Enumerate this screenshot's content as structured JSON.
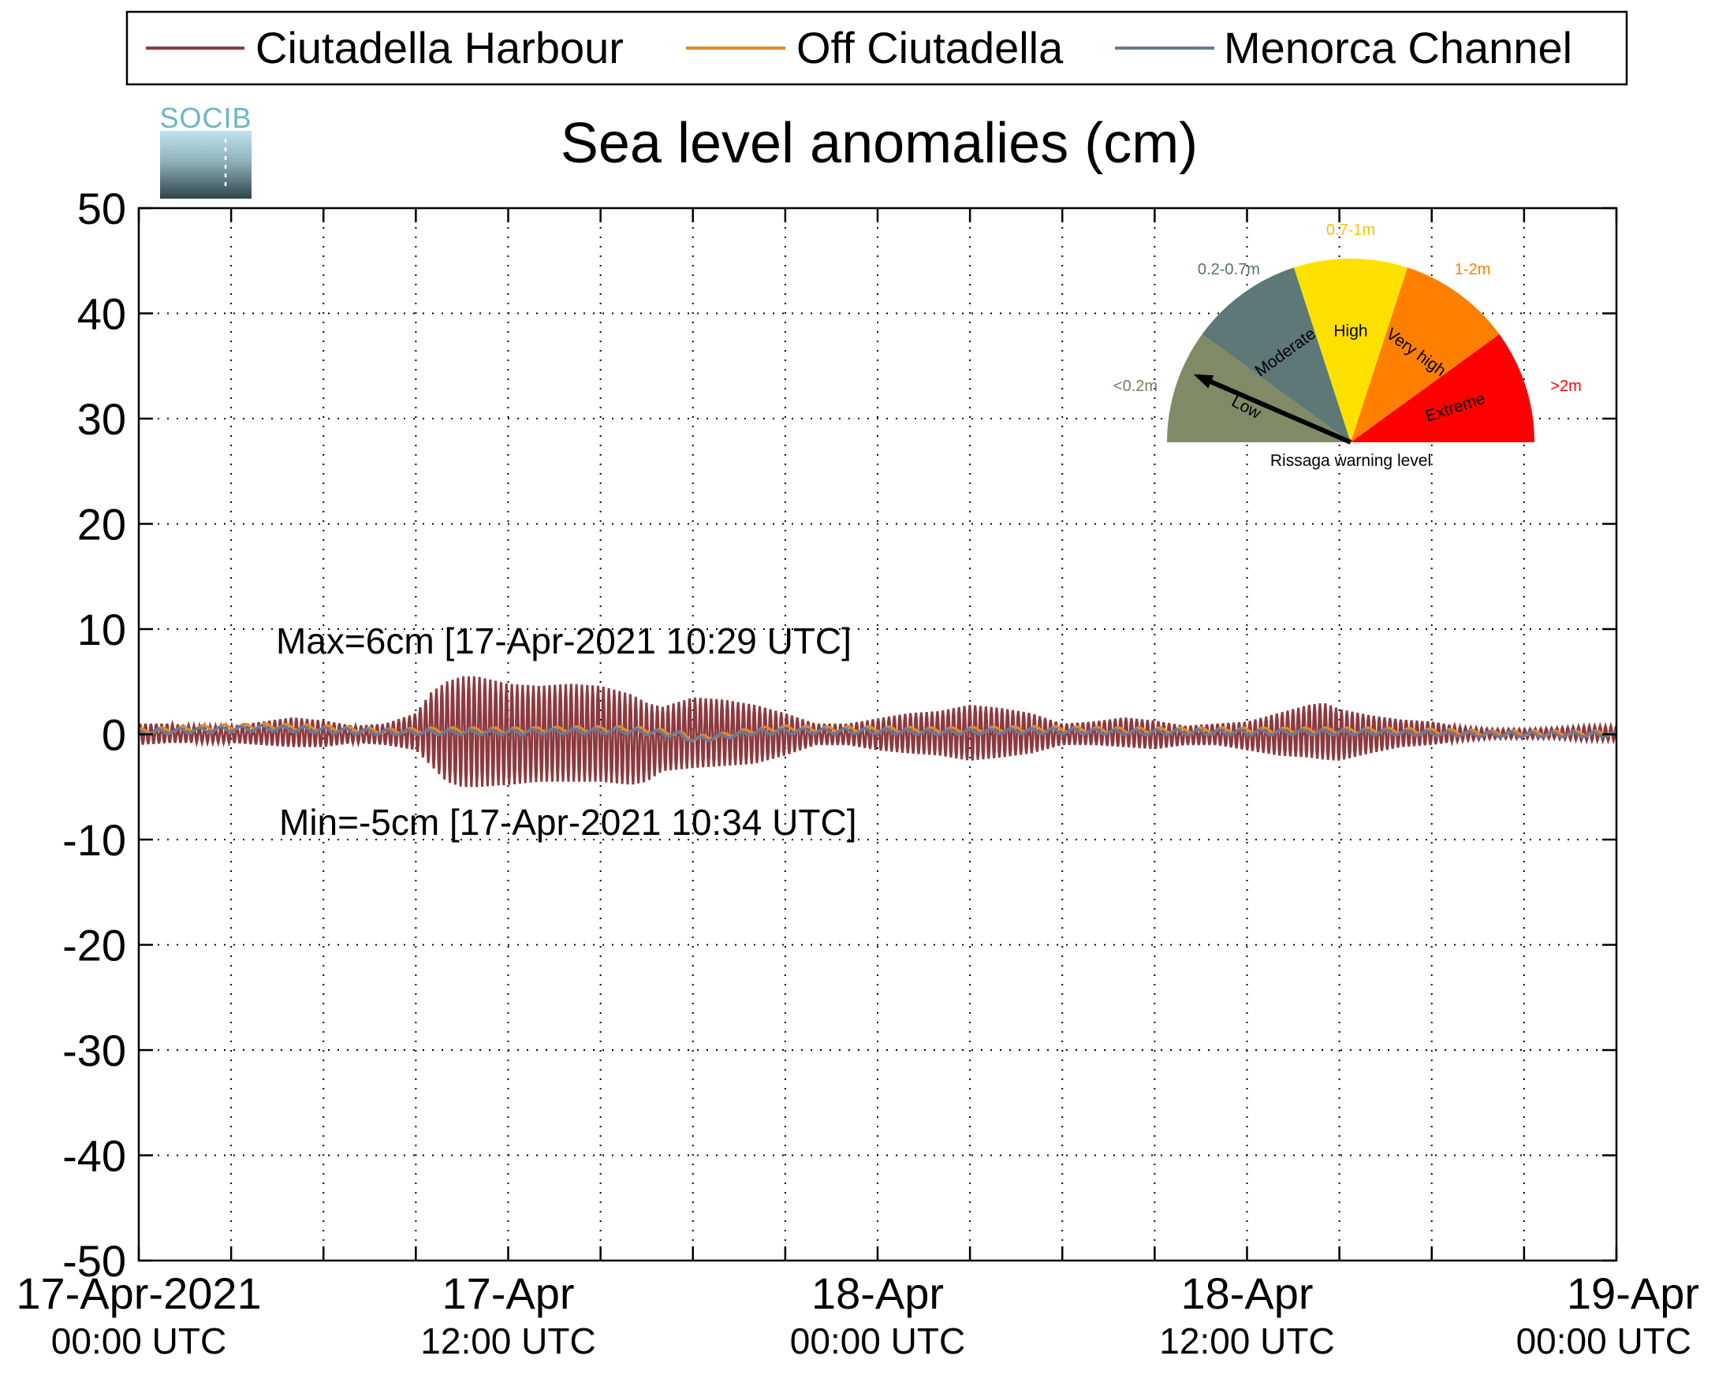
{
  "logo": {
    "text": "SOCIB"
  },
  "chart_data": {
    "type": "line",
    "title": "Sea level anomalies (cm)",
    "xlabel": "",
    "ylabel": "",
    "ylim": [
      -50,
      50
    ],
    "yticks": [
      -50,
      -40,
      -30,
      -20,
      -10,
      0,
      10,
      20,
      30,
      40,
      50
    ],
    "xlim_hours": [
      0,
      48
    ],
    "xtick_labels": [
      {
        "hour": 0,
        "date": "17-Apr-2021",
        "time": "00:00 UTC"
      },
      {
        "hour": 12,
        "date": "17-Apr",
        "time": "12:00 UTC"
      },
      {
        "hour": 24,
        "date": "18-Apr",
        "time": "00:00 UTC"
      },
      {
        "hour": 36,
        "date": "18-Apr",
        "time": "12:00 UTC"
      },
      {
        "hour": 48,
        "date": "19-Apr",
        "time": "00:00 UTC"
      }
    ],
    "grid": true,
    "legend_position": "top",
    "series": [
      {
        "name": "Ciutadella Harbour",
        "color": "#8c3a3f",
        "envelope": {
          "hours": [
            0,
            1,
            2,
            3,
            4,
            5,
            6,
            7,
            8,
            9,
            9.5,
            10,
            10.5,
            11,
            12,
            13,
            14,
            15,
            16,
            16.5,
            17,
            18,
            19,
            20,
            21,
            22,
            23,
            24,
            25,
            26,
            27,
            28,
            29,
            30,
            31,
            32,
            33,
            34,
            35,
            36,
            37,
            38,
            38.5,
            39,
            40,
            41,
            42,
            43,
            44,
            45,
            46,
            47,
            48
          ],
          "upper": [
            1,
            1,
            0.8,
            0.8,
            1.2,
            1.6,
            1.3,
            0.8,
            1,
            2,
            4,
            5,
            5.5,
            5.5,
            4.8,
            4.6,
            4.8,
            4.6,
            3.8,
            3,
            2.6,
            3.5,
            3.3,
            2.8,
            2,
            1,
            1,
            1.5,
            2,
            2.2,
            2.8,
            2.5,
            2,
            1,
            1.2,
            1.6,
            1.3,
            0.8,
            1,
            1.2,
            2,
            2.8,
            3,
            2.4,
            1.8,
            1.4,
            1.2,
            0.7,
            0.5,
            0.5,
            0.6,
            0.8,
            0.8
          ],
          "lower": [
            -1,
            -0.8,
            -0.8,
            -0.8,
            -1,
            -1.2,
            -1.2,
            -0.8,
            -1,
            -1.5,
            -3,
            -4.5,
            -5,
            -5,
            -4.8,
            -4.5,
            -4.5,
            -4.5,
            -4.8,
            -4.5,
            -3.5,
            -3.2,
            -3,
            -2.8,
            -2,
            -1,
            -1,
            -1.5,
            -1.8,
            -2,
            -2.5,
            -2.2,
            -1.8,
            -1,
            -1,
            -1.2,
            -1.4,
            -1,
            -1,
            -1.5,
            -2,
            -2.2,
            -2.4,
            -2.5,
            -1.8,
            -1.2,
            -1,
            -0.6,
            -0.4,
            -0.4,
            -0.4,
            -0.6,
            -0.6
          ]
        },
        "period_minutes": 10.5
      },
      {
        "name": "Off Ciutadella",
        "color": "#e08a2c",
        "hours": [
          0,
          2,
          4,
          6,
          8,
          10,
          12,
          14,
          16,
          17.5,
          18,
          19,
          20,
          21,
          22,
          24,
          26,
          28,
          30,
          32,
          34,
          36,
          38,
          40,
          42,
          44,
          46,
          48
        ],
        "values": [
          0.3,
          0.6,
          0.8,
          0.6,
          0.3,
          0.4,
          0.4,
          0.5,
          0.5,
          0.1,
          -0.4,
          -0.1,
          0.4,
          0.6,
          0.5,
          0.5,
          0.4,
          0.5,
          0.5,
          0.4,
          0.4,
          0.4,
          0.4,
          0.4,
          0.3,
          0.1,
          0.1,
          0.1
        ]
      },
      {
        "name": "Menorca Channel",
        "color": "#6b7a99",
        "hours": [
          0,
          2,
          4,
          6,
          8,
          10,
          12,
          14,
          16,
          17.5,
          18,
          19,
          20,
          21,
          22,
          24,
          26,
          28,
          30,
          32,
          34,
          36,
          38,
          40,
          42,
          44,
          46,
          48
        ],
        "values": [
          0.2,
          0.4,
          0.6,
          0.4,
          0.2,
          0.2,
          0.2,
          0.3,
          0.3,
          0,
          -0.5,
          -0.2,
          0.2,
          0.3,
          0.3,
          0.3,
          0.2,
          0.3,
          0.3,
          0.2,
          0.2,
          0.2,
          0.2,
          0.2,
          0.1,
          0,
          0,
          0
        ]
      }
    ],
    "annotations": {
      "max": "Max=6cm [17-Apr-2021 10:29 UTC]",
      "min": "Min=-5cm [17-Apr-2021 10:34 UTC]"
    },
    "gauge": {
      "title": "Rissaga warning level",
      "needle_level": "Low",
      "sectors": [
        {
          "label": "Low",
          "range": "<0.2m",
          "color": "#808a66",
          "range_color": "#7a7a5e"
        },
        {
          "label": "Moderate",
          "range": "0.2-0.7m",
          "color": "#5d7877",
          "range_color": "#5a6e74"
        },
        {
          "label": "High",
          "range": "0.7-1m",
          "color": "#ffe100",
          "range_color": "#f5c400"
        },
        {
          "label": "Very high",
          "range": "1-2m",
          "color": "#ff8000",
          "range_color": "#ff8000"
        },
        {
          "label": "Extreme",
          "range": ">2m",
          "color": "#ff0000",
          "range_color": "#ff0000"
        }
      ]
    }
  }
}
